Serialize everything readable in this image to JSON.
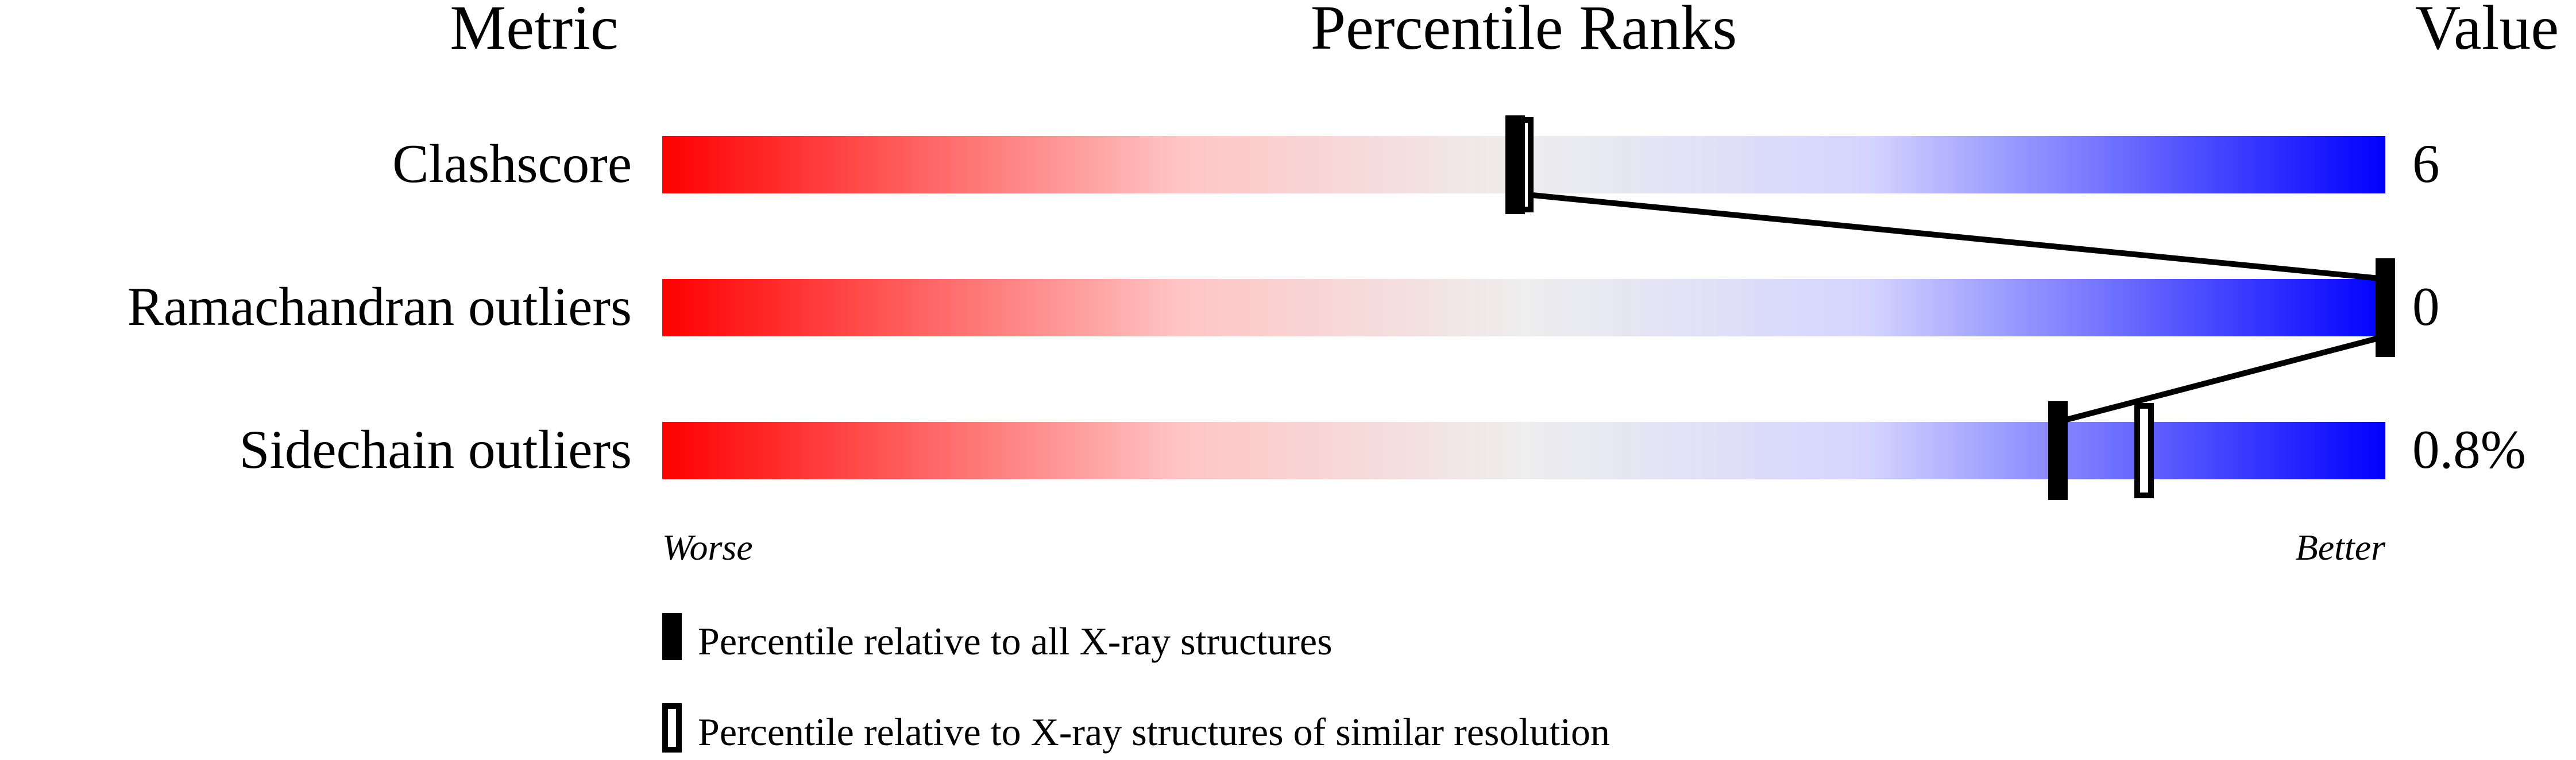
{
  "chart_data": {
    "type": "percentile-bar",
    "headers": {
      "metric": "Metric",
      "ranks": "Percentile Ranks",
      "value": "Value"
    },
    "xlim": [
      0,
      100
    ],
    "metrics": [
      {
        "label": "Clashscore",
        "value": "6",
        "percentile_all": 49.5,
        "percentile_similar": 50
      },
      {
        "label": "Ramachandran outliers",
        "value": "0",
        "percentile_all": 100,
        "percentile_similar": 100
      },
      {
        "label": "Sidechain outliers",
        "value": "0.8%",
        "percentile_all": 81,
        "percentile_similar": 86
      }
    ],
    "axis": {
      "worse": "Worse",
      "better": "Better"
    },
    "legend": {
      "all": "Percentile relative to all X-ray structures",
      "similar": "Percentile relative to X-ray structures of similar resolution"
    },
    "colors": {
      "worse": "#ff0000",
      "middle": "#eeeeee",
      "better": "#0000ff"
    }
  }
}
